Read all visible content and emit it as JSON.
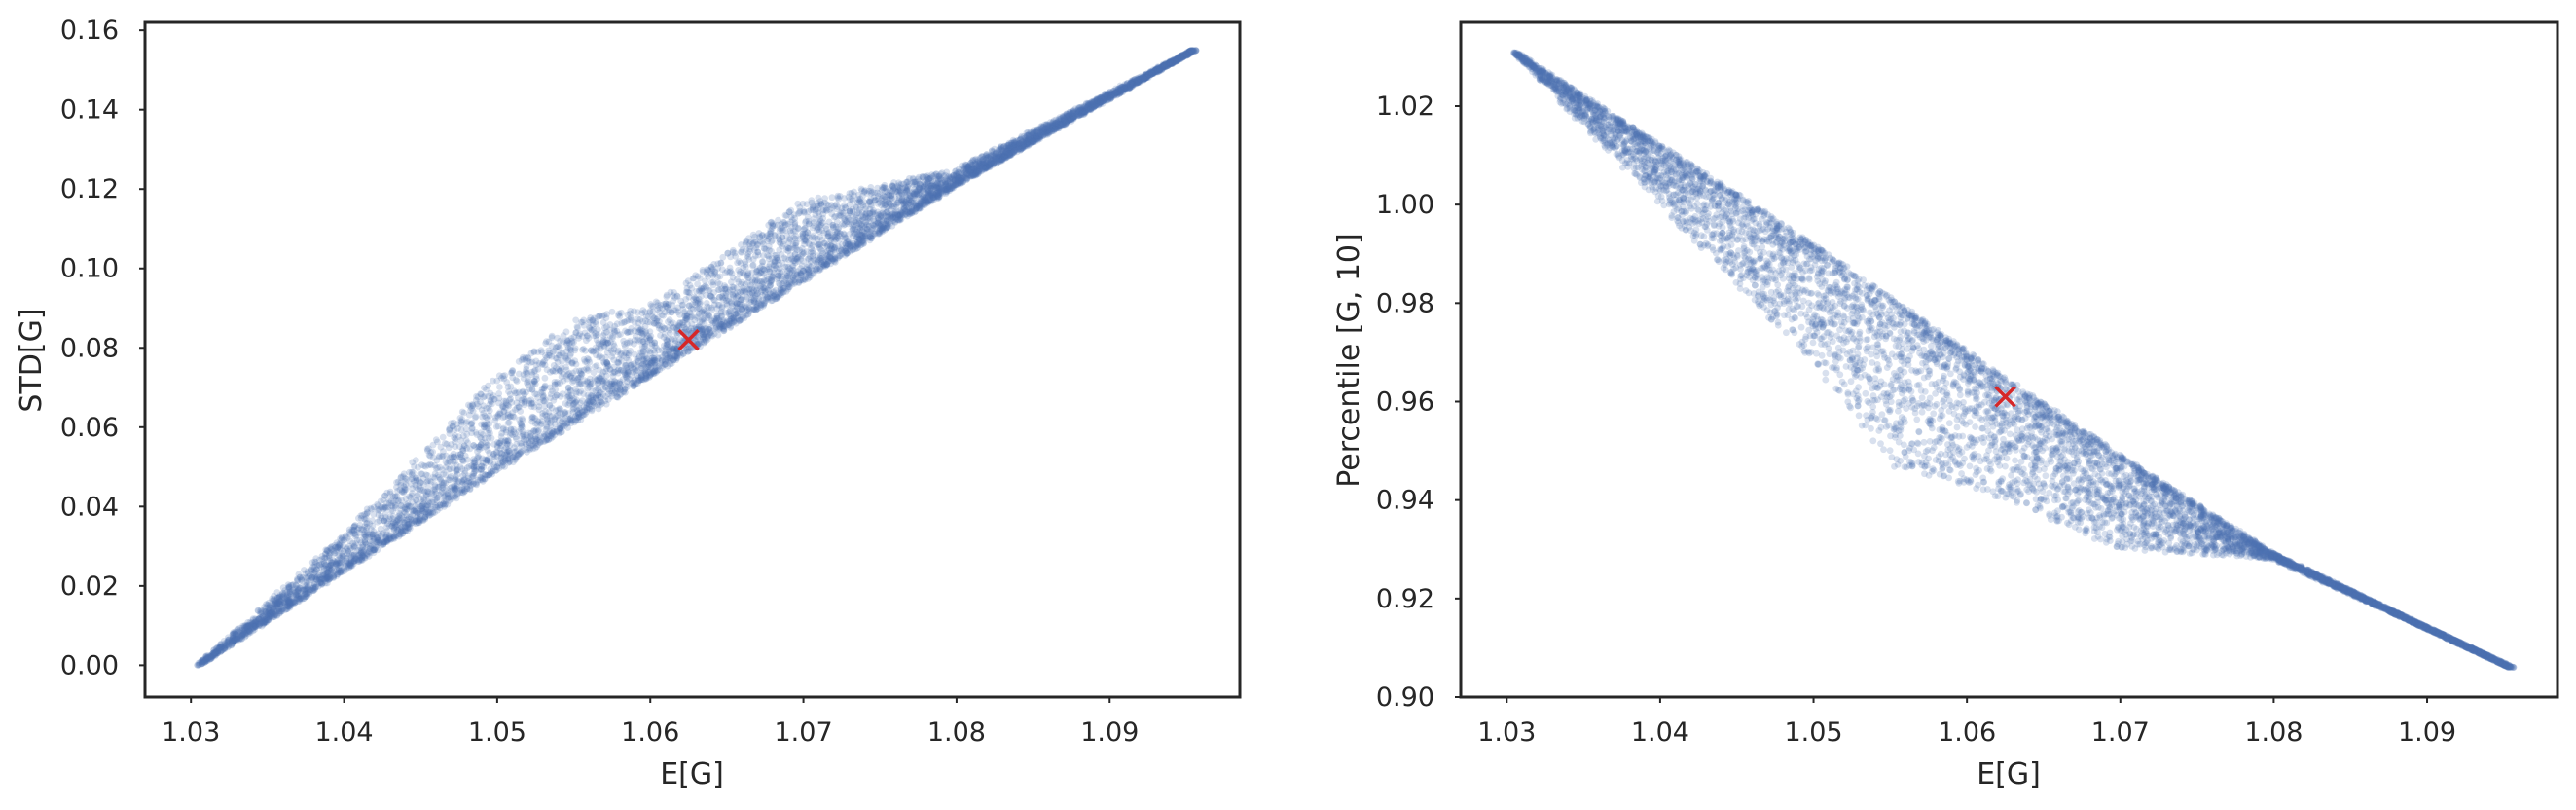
{
  "colors": {
    "points": "#4c72b0",
    "marker": "#d62728",
    "axes": "#262626"
  },
  "chart_data": [
    {
      "type": "scatter",
      "xlabel": "E[G]",
      "ylabel": "STD[G]",
      "xlim": [
        1.027,
        1.0985
      ],
      "ylim": [
        -0.008,
        0.162
      ],
      "xticks": [
        "1.03",
        "1.04",
        "1.05",
        "1.06",
        "1.07",
        "1.08",
        "1.09"
      ],
      "yticks": [
        "0.00",
        "0.02",
        "0.04",
        "0.06",
        "0.08",
        "0.10",
        "0.12",
        "0.14",
        "0.16"
      ],
      "cloud": {
        "n_points": 7000,
        "x_range": [
          1.0305,
          1.0955
        ],
        "lower_edge": [
          [
            1.0305,
            0.0
          ],
          [
            1.05,
            0.049
          ],
          [
            1.06,
            0.073
          ],
          [
            1.07,
            0.097
          ],
          [
            1.08,
            0.121
          ],
          [
            1.0955,
            0.155
          ]
        ],
        "upper_edge": [
          [
            1.0305,
            0.0
          ],
          [
            1.04,
            0.033
          ],
          [
            1.05,
            0.073
          ],
          [
            1.055,
            0.087
          ],
          [
            1.06,
            0.091
          ],
          [
            1.07,
            0.117
          ],
          [
            1.08,
            0.125
          ],
          [
            1.0955,
            0.155
          ]
        ]
      },
      "highlight": {
        "x": 1.0625,
        "y": 0.082
      }
    },
    {
      "type": "scatter",
      "xlabel": "E[G]",
      "ylabel": "Percentile [G, 10]",
      "xlim": [
        1.027,
        1.0985
      ],
      "ylim": [
        0.9,
        1.037
      ],
      "xticks": [
        "1.03",
        "1.04",
        "1.05",
        "1.06",
        "1.07",
        "1.08",
        "1.09"
      ],
      "yticks": [
        "0.90",
        "0.92",
        "0.94",
        "0.96",
        "0.98",
        "1.00",
        "1.02"
      ],
      "cloud": {
        "n_points": 7000,
        "x_range": [
          1.0305,
          1.0955
        ],
        "lower_edge": [
          [
            1.0305,
            1.031
          ],
          [
            1.04,
            1.0
          ],
          [
            1.05,
            0.968
          ],
          [
            1.055,
            0.947
          ],
          [
            1.06,
            0.943
          ],
          [
            1.07,
            0.93
          ],
          [
            1.08,
            0.928
          ],
          [
            1.09,
            0.914
          ],
          [
            1.0955,
            0.906
          ]
        ],
        "upper_edge": [
          [
            1.0305,
            1.031
          ],
          [
            1.05,
            0.992
          ],
          [
            1.06,
            0.97
          ],
          [
            1.07,
            0.949
          ],
          [
            1.08,
            0.929
          ],
          [
            1.09,
            0.914
          ],
          [
            1.0955,
            0.906
          ]
        ]
      },
      "highlight": {
        "x": 1.0625,
        "y": 0.961
      }
    }
  ]
}
